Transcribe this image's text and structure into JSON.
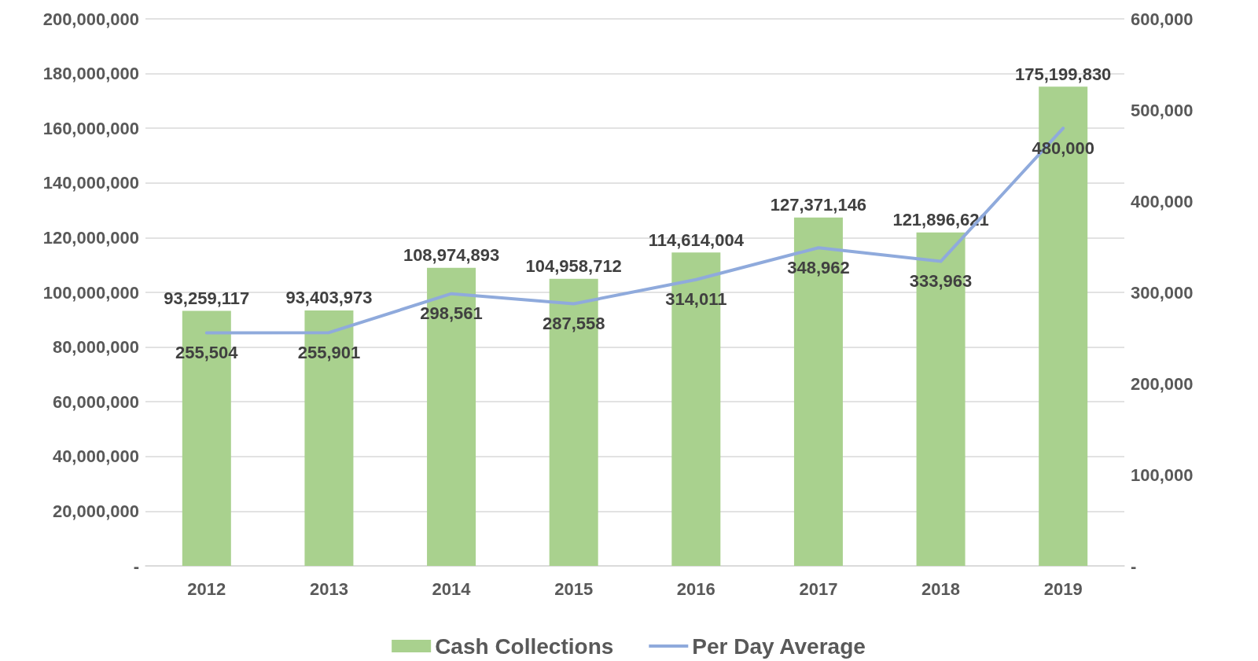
{
  "chart_data": {
    "type": "bar",
    "categories": [
      "2012",
      "2013",
      "2014",
      "2015",
      "2016",
      "2017",
      "2018",
      "2019"
    ],
    "series": [
      {
        "name": "Cash Collections",
        "color": "#a9d18e",
        "values": [
          93259117,
          93403973,
          108974893,
          104958712,
          114614004,
          127371146,
          121896621,
          175199830
        ],
        "value_labels": [
          "93,259,117",
          "93,403,973",
          "108,974,893",
          "104,958,712",
          "114,614,004",
          "127,371,146",
          "121,896,621",
          "175,199,830"
        ]
      },
      {
        "name": "Per Day Average",
        "type": "line",
        "axis": "y2",
        "color": "#8faadc",
        "values": [
          255504,
          255901,
          298561,
          287558,
          314011,
          348962,
          333963,
          480000
        ],
        "value_labels": [
          "255,504",
          "255,901",
          "298,561",
          "287,558",
          "314,011",
          "348,962",
          "333,963",
          "480,000"
        ]
      }
    ],
    "ylim": [
      0,
      200000000
    ],
    "yticks": [
      {
        "value": 0,
        "label": "-"
      },
      {
        "value": 20000000,
        "label": "20,000,000"
      },
      {
        "value": 40000000,
        "label": "40,000,000"
      },
      {
        "value": 60000000,
        "label": "60,000,000"
      },
      {
        "value": 80000000,
        "label": "80,000,000"
      },
      {
        "value": 100000000,
        "label": "100,000,000"
      },
      {
        "value": 120000000,
        "label": "120,000,000"
      },
      {
        "value": 140000000,
        "label": "140,000,000"
      },
      {
        "value": 160000000,
        "label": "160,000,000"
      },
      {
        "value": 180000000,
        "label": "180,000,000"
      },
      {
        "value": 200000000,
        "label": "200,000,000"
      }
    ],
    "y2lim": [
      0,
      600000
    ],
    "y2ticks": [
      {
        "value": 0,
        "label": "-"
      },
      {
        "value": 100000,
        "label": "100,000"
      },
      {
        "value": 200000,
        "label": "200,000"
      },
      {
        "value": 300000,
        "label": "300,000"
      },
      {
        "value": 400000,
        "label": "400,000"
      },
      {
        "value": 500000,
        "label": "500,000"
      },
      {
        "value": 600000,
        "label": "600,000"
      }
    ],
    "grid": "y",
    "legend": "bottom",
    "marker": "none",
    "line_style": "solid"
  }
}
